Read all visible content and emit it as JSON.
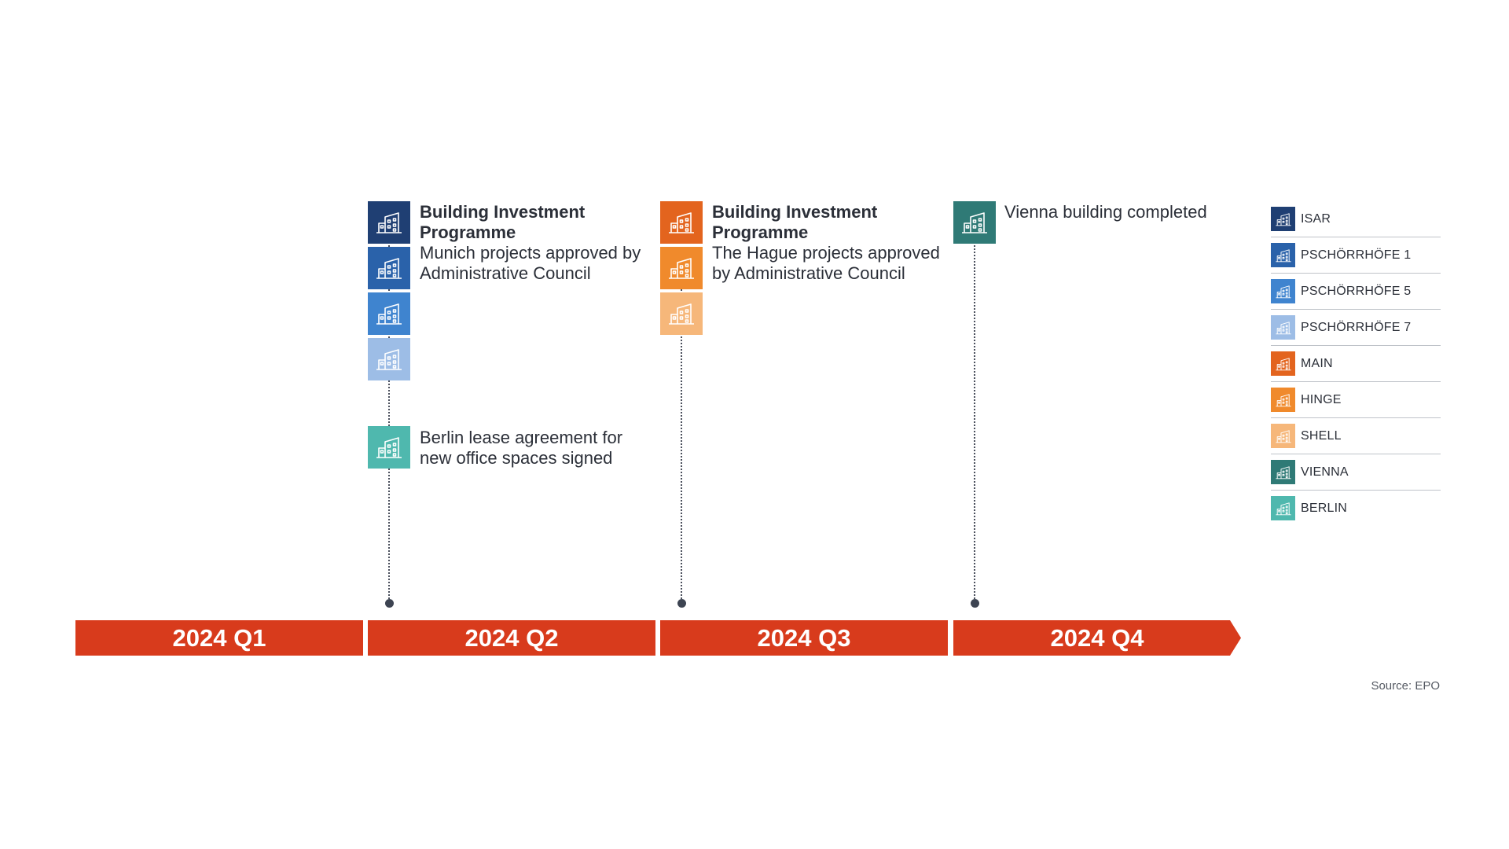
{
  "colors": {
    "isar": "#1f3f73",
    "pschorrhofe_1": "#2a62aa",
    "pschorrhofe_5": "#3f84cf",
    "pschorrhofe_7": "#9dbde6",
    "main": "#e3641e",
    "hinge": "#f08a2c",
    "shell": "#f6b77a",
    "vienna": "#2f7a76",
    "berlin": "#4fb8ae",
    "quarter_bar": "#d83b1c",
    "connector": "#3d4452"
  },
  "events": [
    {
      "title": "Building Investment Programme",
      "description": "Munich projects approved by Administrative Council",
      "icon": "building-icon"
    },
    {
      "title": "",
      "description": "Berlin lease agreement for new office spaces signed",
      "icon": "building-icon"
    },
    {
      "title": "Building Investment Programme",
      "description": "The Hague projects approved by Administrative Council",
      "icon": "building-icon"
    },
    {
      "title": "",
      "description": "Vienna building completed",
      "icon": "building-icon"
    }
  ],
  "quarters": [
    "2024 Q1",
    "2024 Q2",
    "2024 Q3",
    "2024 Q4"
  ],
  "legend": [
    {
      "label": "ISAR"
    },
    {
      "label": "PSCHÖRRHÖFE 1"
    },
    {
      "label": "PSCHÖRRHÖFE 5"
    },
    {
      "label": "PSCHÖRRHÖFE 7"
    },
    {
      "label": "MAIN"
    },
    {
      "label": "HINGE"
    },
    {
      "label": "SHELL"
    },
    {
      "label": "VIENNA"
    },
    {
      "label": "BERLIN"
    }
  ],
  "source": "Source: EPO"
}
